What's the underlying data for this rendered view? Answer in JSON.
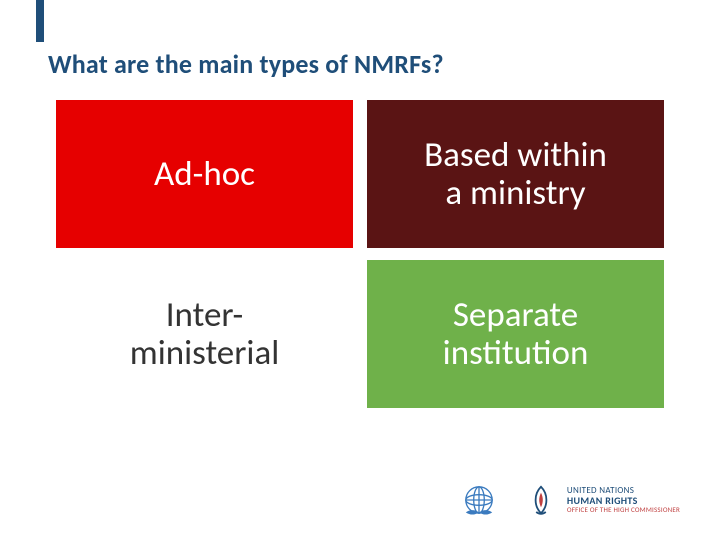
{
  "slide": {
    "accent_bar_color": "#1f4e79",
    "title": "What are the main types of NMRFs?",
    "title_color": "#1f4e79",
    "title_fontsize": 26,
    "grid": {
      "rows": 2,
      "cols": 2,
      "gap_h": 14,
      "gap_v": 12,
      "cells": [
        {
          "label": "Ad-hoc",
          "bg": "#e60000",
          "fg": "#ffffff"
        },
        {
          "label": "Based within\na ministry",
          "bg": "#5a1414",
          "fg": "#ffffff"
        },
        {
          "label": "Inter-\nministerial",
          "bg": "#ffffff",
          "fg": "#333333"
        },
        {
          "label": "Separate\ninstitution",
          "bg": "#6fb14a",
          "fg": "#ffffff"
        }
      ],
      "cell_fontsize": 35
    }
  },
  "footer": {
    "un_emblem_color": "#3b7bbf",
    "ohchr_emblem_color": "#1f4e79",
    "ohchr_flame_color": "#c04040",
    "line1": "UNITED NATIONS",
    "line2": "HUMAN RIGHTS",
    "line3": "OFFICE OF THE HIGH COMMISSIONER"
  }
}
